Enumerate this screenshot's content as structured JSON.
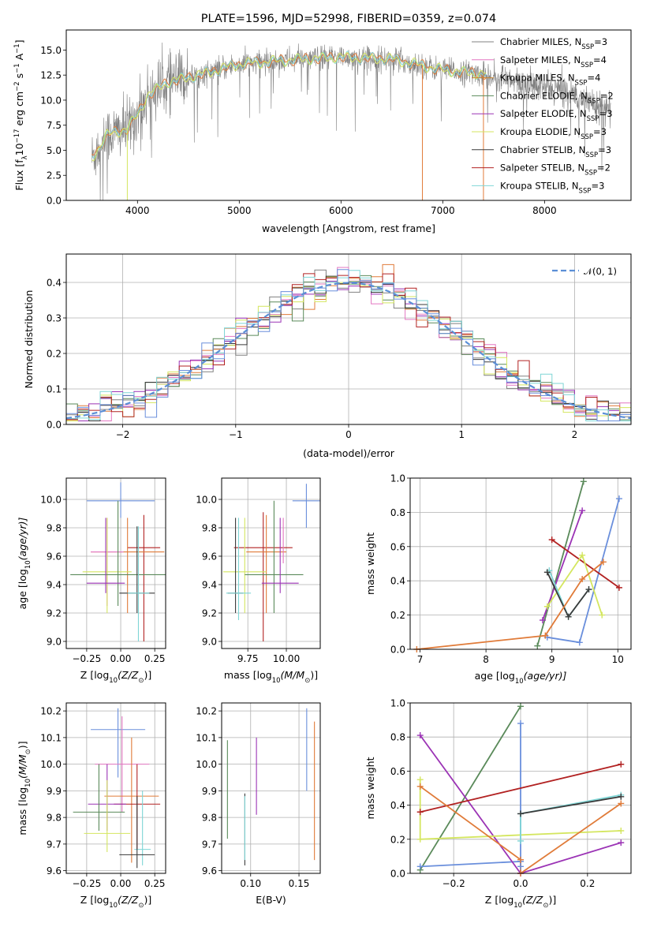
{
  "chart_data": [
    {
      "id": "spectrum",
      "type": "line",
      "title": "PLATE=1596, MJD=52998, FIBERID=0359, z=0.074",
      "xlabel": "wavelength [Angstrom, rest frame]",
      "ylabel": "Flux [f",
      "ylabel_main": "Flux [f",
      "ylabel_sub": "λ",
      "ylabel_mid": "10",
      "ylabel_sup1": "−17",
      "ylabel_rest": " erg cm",
      "ylabel_sup2": "−2",
      "ylabel_rest2": " s",
      "ylabel_sup3": "−1",
      "ylabel_rest3": " A",
      "ylabel_sup4": "−1",
      "ylabel_end": "]",
      "xlim": [
        3300,
        8850
      ],
      "ylim": [
        0,
        17
      ],
      "xticks": [
        4000,
        5000,
        6000,
        7000,
        8000
      ],
      "yticks": [
        "0.0",
        "2.5",
        "5.0",
        "7.5",
        "10.0",
        "12.5",
        "15.0"
      ],
      "ytick_values": [
        0,
        2.5,
        5,
        7.5,
        10,
        12.5,
        15
      ],
      "continuum_knots": [
        [
          3550,
          4.2
        ],
        [
          3700,
          6.5
        ],
        [
          3900,
          7.2
        ],
        [
          4000,
          8.5
        ],
        [
          4100,
          10.5
        ],
        [
          4300,
          11.8
        ],
        [
          4600,
          12.5
        ],
        [
          5000,
          13.6
        ],
        [
          5500,
          14.0
        ],
        [
          6000,
          14.3
        ],
        [
          6500,
          14.1
        ],
        [
          7000,
          13.0
        ],
        [
          7400,
          12.6
        ],
        [
          7800,
          11.5
        ],
        [
          8200,
          11.0
        ],
        [
          8600,
          9.2
        ]
      ],
      "data_range": [
        3550,
        8650
      ],
      "model_range": [
        3550,
        7430
      ],
      "spike_lines": [
        {
          "x": 3900,
          "color": "#d4e65f"
        },
        {
          "x": 6800,
          "color": "#e07b39"
        },
        {
          "x": 7400,
          "color": "#e07b39"
        }
      ],
      "legend": [
        {
          "color": "#808080",
          "main": "Chabrier MILES, N",
          "sub": "SSP",
          "tail": "=3"
        },
        {
          "color": "#e377c2",
          "main": "Salpeter MILES, N",
          "sub": "SSP",
          "tail": "=4"
        },
        {
          "color": "#c8822a",
          "main": "Kroupa MILES, N",
          "sub": "SSP",
          "tail": "=4"
        },
        {
          "color": "#5a8a5a",
          "main": "Chabrier ELODIE, N",
          "sub": "SSP",
          "tail": "=2"
        },
        {
          "color": "#9b33b5",
          "main": "Salpeter ELODIE, N",
          "sub": "SSP",
          "tail": "=3"
        },
        {
          "color": "#d4e65f",
          "main": "Kroupa ELODIE, N",
          "sub": "SSP",
          "tail": "=3"
        },
        {
          "color": "#3a3a3a",
          "main": "Chabrier STELIB, N",
          "sub": "SSP",
          "tail": "=3"
        },
        {
          "color": "#b22222",
          "main": "Salpeter STELIB, N",
          "sub": "SSP",
          "tail": "=2"
        },
        {
          "color": "#7fd6d6",
          "main": "Kroupa STELIB, N",
          "sub": "SSP",
          "tail": "=3"
        }
      ],
      "data_color": "#808080",
      "model_colors": [
        "#e07b39",
        "#7fd6d6",
        "#d4e65f"
      ]
    },
    {
      "id": "residuals",
      "type": "histogram",
      "xlabel": "(data-model)/error",
      "ylabel": "Normed distribution",
      "xlim": [
        -2.5,
        2.5
      ],
      "ylim": [
        0,
        0.48
      ],
      "xticks": [
        -2,
        -1,
        0,
        1,
        2
      ],
      "xtick_labels": [
        "−2",
        "−1",
        "0",
        "1",
        "2"
      ],
      "yticks": [
        0,
        0.1,
        0.2,
        0.3,
        0.4
      ],
      "ytick_labels": [
        "0.0",
        "0.1",
        "0.2",
        "0.3",
        "0.4"
      ],
      "bin_width": 0.1,
      "legend_label": "𝒩(0, 1)",
      "gauss_color": "#5b8fd6",
      "series_colors": [
        "#808080",
        "#e377c2",
        "#e07b39",
        "#5a8a5a",
        "#9b33b5",
        "#d4e65f",
        "#3a3a3a",
        "#b22222",
        "#7fd6d6",
        "#6a8fdc"
      ]
    },
    {
      "id": "age_vs_Z",
      "type": "errorbar",
      "xlabel_main": "Z [log",
      "xlabel_sub": "10",
      "xlabel_tail": "(Z/Z",
      "xlabel_sun": "⊙",
      "xlabel_end": ")]",
      "ylabel_main": "age  [log",
      "ylabel_sub": "10",
      "ylabel_tail": "(age/yr)]",
      "xlim": [
        -0.4,
        0.33
      ],
      "ylim": [
        8.95,
        10.15
      ],
      "xticks": [
        -0.25,
        0,
        0.25
      ],
      "xtick_labels": [
        "−0.25",
        "0.00",
        "0.25"
      ],
      "yticks": [
        9.0,
        9.2,
        9.4,
        9.6,
        9.8,
        10.0
      ],
      "ytick_labels": [
        "9.0",
        "9.2",
        "9.4",
        "9.6",
        "9.8",
        "10.0"
      ],
      "points": [
        {
          "x": 0.0,
          "y": 9.99,
          "xerr": 0.25,
          "ylo": 9.87,
          "yhi": 10.12,
          "color": "#6a8fdc"
        },
        {
          "x": 0.17,
          "y": 9.66,
          "xerr": 0.12,
          "ylo": 9.0,
          "yhi": 9.89,
          "color": "#b22222"
        },
        {
          "x": 0.05,
          "y": 9.63,
          "xerr": 0.27,
          "ylo": 9.2,
          "yhi": 9.87,
          "color": "#e07b39"
        },
        {
          "x": -0.1,
          "y": 9.63,
          "xerr": 0.12,
          "ylo": 9.25,
          "yhi": 9.87,
          "color": "#e377c2"
        },
        {
          "x": -0.1,
          "y": 9.49,
          "xerr": 0.18,
          "ylo": 9.2,
          "yhi": 9.87,
          "color": "#d4e65f"
        },
        {
          "x": -0.02,
          "y": 9.47,
          "xerr": 0.35,
          "ylo": 9.25,
          "yhi": 9.99,
          "color": "#5a8a5a"
        },
        {
          "x": -0.11,
          "y": 9.41,
          "xerr": 0.14,
          "ylo": 9.34,
          "yhi": 9.87,
          "color": "#9b33b5"
        },
        {
          "x": 0.12,
          "y": 9.34,
          "xerr": 0.13,
          "ylo": 9.2,
          "yhi": 9.81,
          "color": "#3a3a3a"
        },
        {
          "x": 0.13,
          "y": 9.34,
          "xerr": 0.08,
          "ylo": 9.0,
          "yhi": 9.81,
          "color": "#7fd6d6"
        }
      ]
    },
    {
      "id": "age_vs_mass",
      "type": "errorbar",
      "xlabel_main": "mass [log",
      "xlabel_sub": "10",
      "xlabel_tail": "(M/M",
      "xlabel_sun": "⊙",
      "xlabel_end": ")]",
      "xlim": [
        9.58,
        10.22
      ],
      "ylim": [
        8.95,
        10.15
      ],
      "xticks": [
        9.75,
        10.0
      ],
      "xtick_labels": [
        "9.75",
        "10.00"
      ],
      "yticks": [
        9.0,
        9.2,
        9.4,
        9.6,
        9.8,
        10.0
      ],
      "ytick_labels": [
        "9.0",
        "9.2",
        "9.4",
        "9.6",
        "9.8",
        "10.0"
      ],
      "points": [
        {
          "x": 10.13,
          "y": 9.99,
          "xerr": 0.09,
          "ylo": 9.8,
          "yhi": 10.11,
          "color": "#6a8fdc"
        },
        {
          "x": 9.85,
          "y": 9.66,
          "xerr": 0.19,
          "ylo": 9.0,
          "yhi": 9.91,
          "color": "#b22222"
        },
        {
          "x": 9.87,
          "y": 9.63,
          "xerr": 0.13,
          "ylo": 9.2,
          "yhi": 9.89,
          "color": "#e07b39"
        },
        {
          "x": 9.98,
          "y": 9.63,
          "xerr": 0.0,
          "ylo": 9.55,
          "yhi": 9.87,
          "color": "#e377c2"
        },
        {
          "x": 9.73,
          "y": 9.49,
          "xerr": 0.14,
          "ylo": 9.2,
          "yhi": 9.87,
          "color": "#d4e65f"
        },
        {
          "x": 9.92,
          "y": 9.47,
          "xerr": 0.19,
          "ylo": 9.2,
          "yhi": 9.99,
          "color": "#5a8a5a"
        },
        {
          "x": 9.96,
          "y": 9.41,
          "xerr": 0.12,
          "ylo": 9.34,
          "yhi": 9.87,
          "color": "#9b33b5"
        },
        {
          "x": 9.67,
          "y": 9.34,
          "xerr": 0.05,
          "ylo": 9.2,
          "yhi": 9.87,
          "color": "#3a3a3a"
        },
        {
          "x": 9.69,
          "y": 9.34,
          "xerr": 0.08,
          "ylo": 9.15,
          "yhi": 9.87,
          "color": "#7fd6d6"
        }
      ]
    },
    {
      "id": "weight_vs_age",
      "type": "line",
      "xlabel_main": "age  [log",
      "xlabel_sub": "10",
      "xlabel_tail": "(age/yr)]",
      "ylabel": "mass weight",
      "xlim": [
        6.85,
        10.2
      ],
      "ylim": [
        0,
        1.0
      ],
      "xticks": [
        7,
        8,
        9,
        10
      ],
      "xtick_labels": [
        "7",
        "8",
        "9",
        "10"
      ],
      "yticks": [
        0,
        0.2,
        0.4,
        0.6,
        0.8,
        1.0
      ],
      "ytick_labels": [
        "0.0",
        "0.2",
        "0.4",
        "0.6",
        "0.8",
        "1.0"
      ],
      "series": [
        {
          "color": "#5a8a5a",
          "x": [
            8.78,
            9.48
          ],
          "y": [
            0.02,
            0.98
          ]
        },
        {
          "color": "#6a8fdc",
          "x": [
            8.93,
            9.42,
            10.02
          ],
          "y": [
            0.07,
            0.04,
            0.88
          ]
        },
        {
          "color": "#9b33b5",
          "x": [
            8.86,
            9.46
          ],
          "y": [
            0.17,
            0.81
          ]
        },
        {
          "color": "#b22222",
          "x": [
            9.0,
            10.02
          ],
          "y": [
            0.64,
            0.36
          ]
        },
        {
          "color": "#d4e65f",
          "x": [
            8.93,
            9.46,
            9.76
          ],
          "y": [
            0.25,
            0.55,
            0.2
          ]
        },
        {
          "color": "#7fd6d6",
          "x": [
            8.96,
            9.25,
            9.56
          ],
          "y": [
            0.46,
            0.19,
            0.35
          ]
        },
        {
          "color": "#3a3a3a",
          "x": [
            8.93,
            9.25,
            9.56
          ],
          "y": [
            0.45,
            0.19,
            0.35
          ]
        },
        {
          "color": "#e07b39",
          "x": [
            6.95,
            8.9,
            9.46,
            9.78
          ],
          "y": [
            0.0,
            0.08,
            0.41,
            0.51
          ]
        }
      ]
    },
    {
      "id": "mass_vs_Z",
      "type": "errorbar",
      "xlabel_main": "Z [log",
      "xlabel_sub": "10",
      "xlabel_tail": "(Z/Z",
      "xlabel_sun": "⊙",
      "xlabel_end": ")]",
      "ylabel_main": "mass [log",
      "ylabel_sub": "10",
      "ylabel_tail": "(M/M",
      "ylabel_sun": "⊙",
      "ylabel_end": ")]",
      "xlim": [
        -0.4,
        0.33
      ],
      "ylim": [
        9.59,
        10.23
      ],
      "xticks": [
        -0.25,
        0,
        0.25
      ],
      "xtick_labels": [
        "−0.25",
        "0.00",
        "0.25"
      ],
      "yticks": [
        9.6,
        9.7,
        9.8,
        9.9,
        10.0,
        10.1,
        10.2
      ],
      "ytick_labels": [
        "9.6",
        "9.7",
        "9.8",
        "9.9",
        "10.0",
        "10.1",
        "10.2"
      ],
      "points": [
        {
          "x": -0.02,
          "y": 10.13,
          "xerr": 0.2,
          "ylo": 9.95,
          "yhi": 10.21,
          "color": "#6a8fdc"
        },
        {
          "x": 0.01,
          "y": 10.0,
          "xerr": 0.2,
          "ylo": 9.82,
          "yhi": 10.18,
          "color": "#e377c2"
        },
        {
          "x": 0.08,
          "y": 9.88,
          "xerr": 0.2,
          "ylo": 9.63,
          "yhi": 10.1,
          "color": "#e07b39"
        },
        {
          "x": 0.12,
          "y": 9.85,
          "xerr": 0.17,
          "ylo": 9.68,
          "yhi": 10.0,
          "color": "#b22222"
        },
        {
          "x": -0.1,
          "y": 9.85,
          "xerr": 0.14,
          "ylo": 9.75,
          "yhi": 10.0,
          "color": "#9b33b5"
        },
        {
          "x": -0.16,
          "y": 9.82,
          "xerr": 0.19,
          "ylo": 9.75,
          "yhi": 10.0,
          "color": "#5a8a5a"
        },
        {
          "x": -0.1,
          "y": 9.74,
          "xerr": 0.17,
          "ylo": 9.67,
          "yhi": 9.94,
          "color": "#d4e65f"
        },
        {
          "x": 0.16,
          "y": 9.68,
          "xerr": 0.06,
          "ylo": 9.62,
          "yhi": 9.9,
          "color": "#7fd6d6"
        },
        {
          "x": 0.12,
          "y": 9.66,
          "xerr": 0.13,
          "ylo": 9.61,
          "yhi": 9.88,
          "color": "#3a3a3a"
        }
      ]
    },
    {
      "id": "mass_vs_ebv",
      "type": "errorbar",
      "xlabel": "E(B-V)",
      "xlim": [
        0.07,
        0.172
      ],
      "ylim": [
        9.59,
        10.23
      ],
      "xticks": [
        0.1,
        0.15
      ],
      "xtick_labels": [
        "0.10",
        "0.15"
      ],
      "yticks": [
        9.6,
        9.7,
        9.8,
        9.9,
        10.0,
        10.1,
        10.2
      ],
      "ytick_labels": [
        "9.6",
        "9.7",
        "9.8",
        "9.9",
        "10.0",
        "10.1",
        "10.2"
      ],
      "points": [
        {
          "x": 0.158,
          "y": 10.05,
          "xerr": 0,
          "ylo": 9.9,
          "yhi": 10.21,
          "color": "#6a8fdc"
        },
        {
          "x": 0.166,
          "y": 9.9,
          "xerr": 0,
          "ylo": 9.64,
          "yhi": 10.16,
          "color": "#e07b39"
        },
        {
          "x": 0.106,
          "y": 9.95,
          "xerr": 0,
          "ylo": 9.81,
          "yhi": 10.1,
          "color": "#9b33b5"
        },
        {
          "x": 0.076,
          "y": 9.9,
          "xerr": 0,
          "ylo": 9.72,
          "yhi": 10.09,
          "color": "#5a8a5a"
        },
        {
          "x": 0.094,
          "y": 9.75,
          "xerr": 0,
          "ylo": 9.62,
          "yhi": 9.89,
          "color": "#3a3a3a"
        },
        {
          "x": 0.094,
          "y": 9.76,
          "xerr": 0,
          "ylo": 9.64,
          "yhi": 9.88,
          "color": "#7fd6d6"
        }
      ]
    },
    {
      "id": "weight_vs_Z",
      "type": "line",
      "xlabel_main": "Z [log",
      "xlabel_sub": "10",
      "xlabel_tail": "(Z/Z",
      "xlabel_sun": "⊙",
      "xlabel_end": ")]",
      "ylabel": "mass weight",
      "xlim": [
        -0.33,
        0.33
      ],
      "ylim": [
        0,
        1.0
      ],
      "xticks": [
        -0.2,
        0,
        0.2
      ],
      "xtick_labels": [
        "−0.2",
        "0.0",
        "0.2"
      ],
      "yticks": [
        0,
        0.2,
        0.4,
        0.6,
        0.8,
        1.0
      ],
      "ytick_labels": [
        "0.0",
        "0.2",
        "0.4",
        "0.6",
        "0.8",
        "1.0"
      ],
      "series": [
        {
          "color": "#5a8a5a",
          "x": [
            -0.3,
            0.0
          ],
          "y": [
            0.02,
            0.98
          ]
        },
        {
          "color": "#6a8fdc",
          "x": [
            -0.3,
            0.0,
            0.0,
            0.0
          ],
          "y": [
            0.04,
            0.07,
            0.88,
            0.04
          ]
        },
        {
          "color": "#9b33b5",
          "x": [
            -0.3,
            0.0,
            0.3
          ],
          "y": [
            0.81,
            0.0,
            0.18
          ]
        },
        {
          "color": "#b22222",
          "x": [
            -0.3,
            0.3
          ],
          "y": [
            0.36,
            0.64
          ]
        },
        {
          "color": "#d4e65f",
          "x": [
            -0.3,
            -0.3,
            0.3
          ],
          "y": [
            0.55,
            0.2,
            0.25
          ]
        },
        {
          "color": "#7fd6d6",
          "x": [
            0.0,
            0.0,
            0.3
          ],
          "y": [
            0.19,
            0.35,
            0.46
          ]
        },
        {
          "color": "#3a3a3a",
          "x": [
            0.0,
            0.3
          ],
          "y": [
            0.35,
            0.45
          ]
        },
        {
          "color": "#e07b39",
          "x": [
            -0.3,
            0.0,
            0.0,
            0.3
          ],
          "y": [
            0.51,
            0.08,
            0.0,
            0.41
          ]
        }
      ]
    }
  ]
}
